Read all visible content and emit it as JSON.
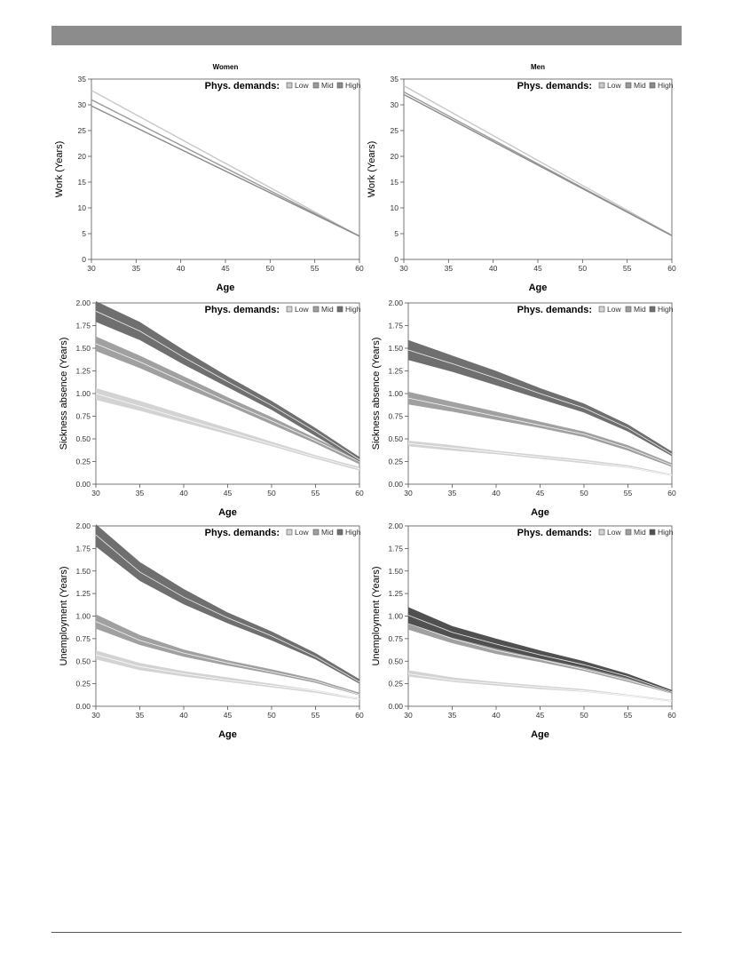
{
  "chart_data": [
    {
      "type": "line",
      "title": "Women",
      "xlabel": "Age",
      "ylabel": "Work (Years)",
      "xlim": [
        30,
        60
      ],
      "ylim": [
        0,
        35
      ],
      "xticks": [
        "30",
        "35",
        "40",
        "45",
        "50",
        "55",
        "60"
      ],
      "yticks": [
        "0",
        "5",
        "10",
        "15",
        "20",
        "25",
        "30",
        "35"
      ],
      "legend": {
        "title": "Phys. demands:",
        "items": [
          "Low",
          "Mid",
          "High"
        ],
        "placement": "top-right"
      },
      "x": [
        30,
        60
      ],
      "series": [
        {
          "name": "Low",
          "color": "#c8c8c8",
          "values": [
            32.8,
            4.5
          ]
        },
        {
          "name": "Mid",
          "color": "#9a9a9a",
          "values": [
            31.0,
            4.5
          ]
        },
        {
          "name": "High",
          "color": "#8a8a8a",
          "values": [
            29.8,
            4.5
          ]
        }
      ]
    },
    {
      "type": "line",
      "title": "Men",
      "xlabel": "Age",
      "ylabel": "Work (Years)",
      "xlim": [
        30,
        60
      ],
      "ylim": [
        0,
        35
      ],
      "xticks": [
        "30",
        "35",
        "40",
        "45",
        "50",
        "55",
        "60"
      ],
      "yticks": [
        "0",
        "5",
        "10",
        "15",
        "20",
        "25",
        "30",
        "35"
      ],
      "legend": {
        "title": "Phys. demands:",
        "items": [
          "Low",
          "Mid",
          "High"
        ],
        "placement": "top-right"
      },
      "x": [
        30,
        60
      ],
      "series": [
        {
          "name": "Low",
          "color": "#c8c8c8",
          "values": [
            33.7,
            4.7
          ]
        },
        {
          "name": "Mid",
          "color": "#9a9a9a",
          "values": [
            32.5,
            4.6
          ]
        },
        {
          "name": "High",
          "color": "#8a8a8a",
          "values": [
            32.0,
            4.6
          ]
        }
      ]
    },
    {
      "type": "area",
      "title": "",
      "xlabel": "Age",
      "ylabel": "Sickness absence (Years)",
      "xlim": [
        30,
        60
      ],
      "ylim": [
        0,
        2
      ],
      "xticks": [
        "30",
        "35",
        "40",
        "45",
        "50",
        "55",
        "60"
      ],
      "yticks": [
        "0.00",
        "0.25",
        "0.50",
        "0.75",
        "1.00",
        "1.25",
        "1.50",
        "1.75",
        "2.00"
      ],
      "legend": {
        "title": "Phys. demands:",
        "items": [
          "Low",
          "Mid",
          "High"
        ],
        "placement": "top-right"
      },
      "x": [
        30,
        35,
        40,
        45,
        50,
        55,
        60
      ],
      "series": [
        {
          "name": "Low",
          "color": "#d3d3d3",
          "values": [
            1.0,
            0.86,
            0.72,
            0.58,
            0.44,
            0.3,
            0.17
          ],
          "lower": [
            0.93,
            0.81,
            0.68,
            0.55,
            0.42,
            0.28,
            0.15
          ],
          "upper": [
            1.06,
            0.92,
            0.77,
            0.62,
            0.47,
            0.32,
            0.19
          ]
        },
        {
          "name": "Mid",
          "color": "#a0a0a0",
          "values": [
            1.55,
            1.35,
            1.13,
            0.91,
            0.7,
            0.48,
            0.25
          ],
          "lower": [
            1.47,
            1.28,
            1.07,
            0.87,
            0.66,
            0.45,
            0.22
          ],
          "upper": [
            1.63,
            1.42,
            1.19,
            0.96,
            0.74,
            0.51,
            0.28
          ]
        },
        {
          "name": "High",
          "color": "#6f6f6f",
          "values": [
            1.91,
            1.69,
            1.4,
            1.13,
            0.87,
            0.58,
            0.27
          ],
          "lower": [
            1.79,
            1.59,
            1.32,
            1.07,
            0.82,
            0.53,
            0.25
          ],
          "upper": [
            2.02,
            1.79,
            1.48,
            1.19,
            0.92,
            0.62,
            0.3
          ]
        }
      ]
    },
    {
      "type": "area",
      "title": "",
      "xlabel": "Age",
      "ylabel": "Sickness absence (Years)",
      "xlim": [
        30,
        60
      ],
      "ylim": [
        0,
        2
      ],
      "xticks": [
        "30",
        "35",
        "40",
        "45",
        "50",
        "55",
        "60"
      ],
      "yticks": [
        "0.00",
        "0.25",
        "0.50",
        "0.75",
        "1.00",
        "1.25",
        "1.50",
        "1.75",
        "2.00"
      ],
      "legend": {
        "title": "Phys. demands:",
        "items": [
          "Low",
          "Mid",
          "High"
        ],
        "placement": "top-right"
      },
      "x": [
        30,
        35,
        40,
        45,
        50,
        55,
        60
      ],
      "series": [
        {
          "name": "Low",
          "color": "#d3d3d3",
          "values": [
            0.45,
            0.4,
            0.35,
            0.3,
            0.25,
            0.19,
            0.1
          ],
          "lower": [
            0.42,
            0.37,
            0.33,
            0.28,
            0.23,
            0.18,
            0.09
          ],
          "upper": [
            0.48,
            0.43,
            0.37,
            0.32,
            0.27,
            0.21,
            0.11
          ]
        },
        {
          "name": "Mid",
          "color": "#a0a0a0",
          "values": [
            0.95,
            0.85,
            0.75,
            0.65,
            0.55,
            0.4,
            0.21
          ],
          "lower": [
            0.88,
            0.8,
            0.71,
            0.62,
            0.52,
            0.37,
            0.19
          ],
          "upper": [
            1.02,
            0.91,
            0.8,
            0.69,
            0.58,
            0.43,
            0.23
          ]
        },
        {
          "name": "High",
          "color": "#6f6f6f",
          "values": [
            1.48,
            1.33,
            1.17,
            1.0,
            0.84,
            0.62,
            0.33
          ],
          "lower": [
            1.37,
            1.24,
            1.09,
            0.94,
            0.79,
            0.58,
            0.31
          ],
          "upper": [
            1.59,
            1.42,
            1.25,
            1.06,
            0.89,
            0.66,
            0.36
          ]
        }
      ]
    },
    {
      "type": "area",
      "title": "",
      "xlabel": "Age",
      "ylabel": "Unemployment (Years)",
      "xlim": [
        30,
        60
      ],
      "ylim": [
        0,
        2
      ],
      "xticks": [
        "30",
        "35",
        "40",
        "45",
        "50",
        "55",
        "60"
      ],
      "yticks": [
        "0.00",
        "0.25",
        "0.50",
        "0.75",
        "1.00",
        "1.25",
        "1.50",
        "1.75",
        "2.00"
      ],
      "legend": {
        "title": "Phys. demands:",
        "items": [
          "Low",
          "Mid",
          "High"
        ],
        "placement": "top-right"
      },
      "x": [
        30,
        35,
        40,
        45,
        50,
        55,
        60
      ],
      "series": [
        {
          "name": "Low",
          "color": "#d3d3d3",
          "values": [
            0.57,
            0.44,
            0.36,
            0.29,
            0.23,
            0.17,
            0.08
          ],
          "lower": [
            0.52,
            0.4,
            0.33,
            0.27,
            0.21,
            0.15,
            0.07
          ],
          "upper": [
            0.62,
            0.48,
            0.39,
            0.32,
            0.25,
            0.18,
            0.09
          ]
        },
        {
          "name": "Mid",
          "color": "#a0a0a0",
          "values": [
            0.94,
            0.73,
            0.59,
            0.48,
            0.38,
            0.28,
            0.13
          ],
          "lower": [
            0.86,
            0.68,
            0.55,
            0.45,
            0.36,
            0.26,
            0.12
          ],
          "upper": [
            1.02,
            0.79,
            0.63,
            0.51,
            0.41,
            0.3,
            0.15
          ]
        },
        {
          "name": "High",
          "color": "#6f6f6f",
          "values": [
            1.9,
            1.49,
            1.21,
            0.98,
            0.78,
            0.55,
            0.27
          ],
          "lower": [
            1.77,
            1.39,
            1.13,
            0.92,
            0.73,
            0.52,
            0.25
          ],
          "upper": [
            2.02,
            1.6,
            1.3,
            1.04,
            0.83,
            0.59,
            0.3
          ]
        }
      ]
    },
    {
      "type": "area",
      "title": "",
      "xlabel": "Age",
      "ylabel": "Unemployment (Years)",
      "xlim": [
        30,
        60
      ],
      "ylim": [
        0,
        2
      ],
      "xticks": [
        "30",
        "35",
        "40",
        "45",
        "50",
        "55",
        "60"
      ],
      "yticks": [
        "0.00",
        "0.25",
        "0.50",
        "0.75",
        "1.00",
        "1.25",
        "1.50",
        "1.75",
        "2.00"
      ],
      "legend": {
        "title": "Phys. demands:",
        "items": [
          "Low",
          "Mid",
          "High"
        ],
        "placement": "top-right"
      },
      "x": [
        30,
        35,
        40,
        45,
        50,
        55,
        60
      ],
      "series": [
        {
          "name": "Low",
          "color": "#d3d3d3",
          "values": [
            0.36,
            0.29,
            0.25,
            0.21,
            0.17,
            0.12,
            0.06
          ],
          "lower": [
            0.33,
            0.27,
            0.23,
            0.19,
            0.16,
            0.11,
            0.05
          ],
          "upper": [
            0.4,
            0.32,
            0.27,
            0.23,
            0.19,
            0.13,
            0.07
          ]
        },
        {
          "name": "Mid",
          "color": "#a0a0a0",
          "values": [
            0.92,
            0.75,
            0.62,
            0.52,
            0.41,
            0.29,
            0.15
          ],
          "lower": [
            0.85,
            0.7,
            0.58,
            0.49,
            0.39,
            0.27,
            0.14
          ],
          "upper": [
            0.98,
            0.8,
            0.66,
            0.55,
            0.44,
            0.31,
            0.16
          ]
        },
        {
          "name": "High",
          "color": "#505050",
          "values": [
            1.01,
            0.82,
            0.69,
            0.57,
            0.46,
            0.33,
            0.16
          ],
          "lower": [
            0.92,
            0.76,
            0.64,
            0.53,
            0.43,
            0.31,
            0.15
          ],
          "upper": [
            1.1,
            0.89,
            0.75,
            0.62,
            0.5,
            0.36,
            0.18
          ]
        }
      ]
    }
  ]
}
